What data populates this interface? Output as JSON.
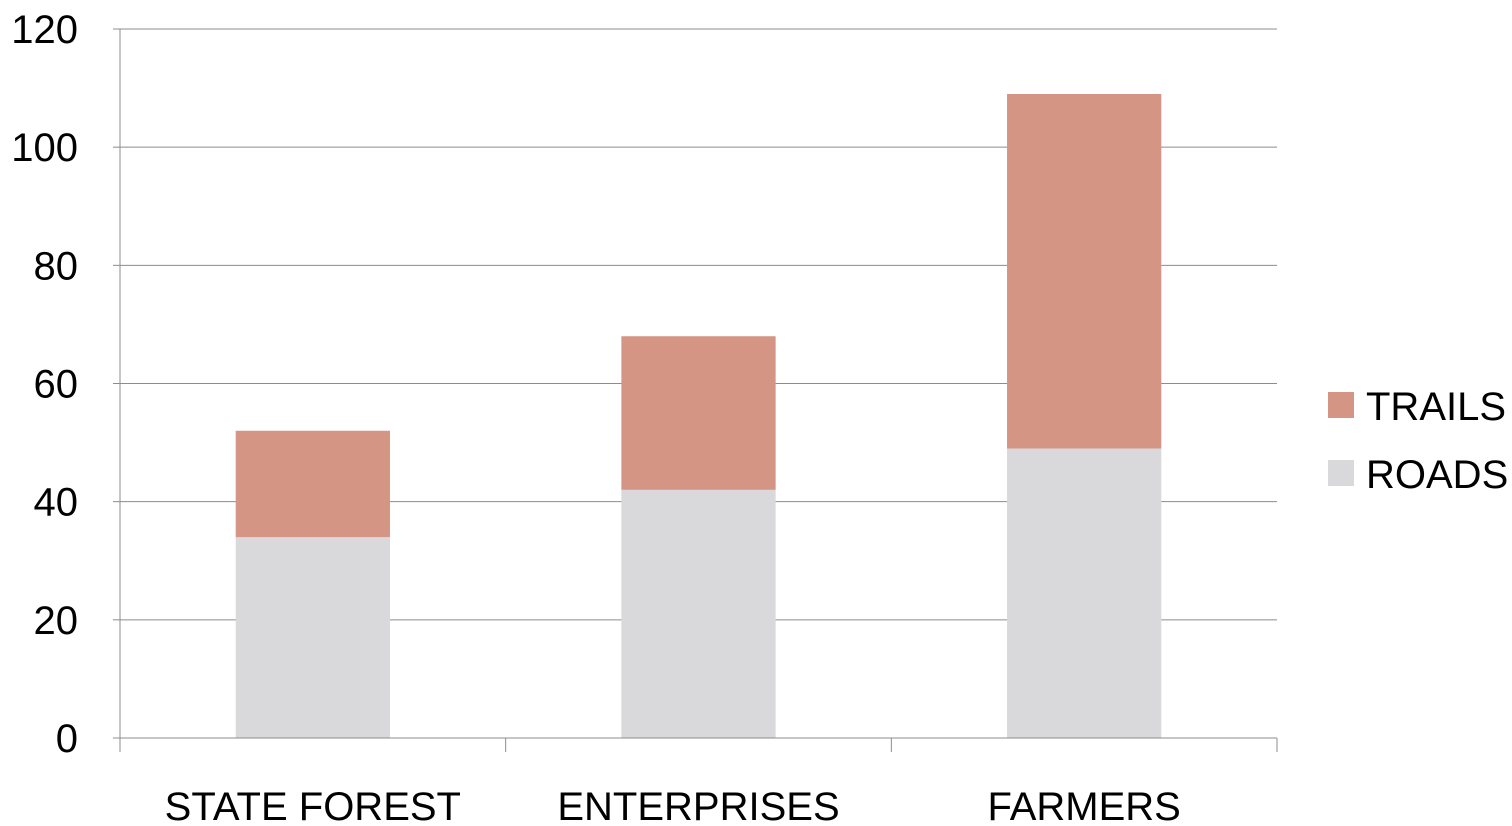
{
  "chart_data": {
    "type": "bar",
    "stacked": true,
    "categories": [
      "STATE FOREST",
      "ENTERPRISES",
      "FARMERS"
    ],
    "series": [
      {
        "name": "ROADS",
        "values": [
          34,
          42,
          49
        ],
        "color": "#d9d9db"
      },
      {
        "name": "TRAILS",
        "values": [
          18,
          26,
          60
        ],
        "color": "#d49585"
      }
    ],
    "ylim": [
      0,
      120
    ],
    "yticks": [
      0,
      20,
      40,
      60,
      80,
      100,
      120
    ],
    "grid": true,
    "legend_position": "right",
    "legend_order": [
      "TRAILS",
      "ROADS"
    ],
    "title": "",
    "xlabel": "",
    "ylabel": ""
  }
}
